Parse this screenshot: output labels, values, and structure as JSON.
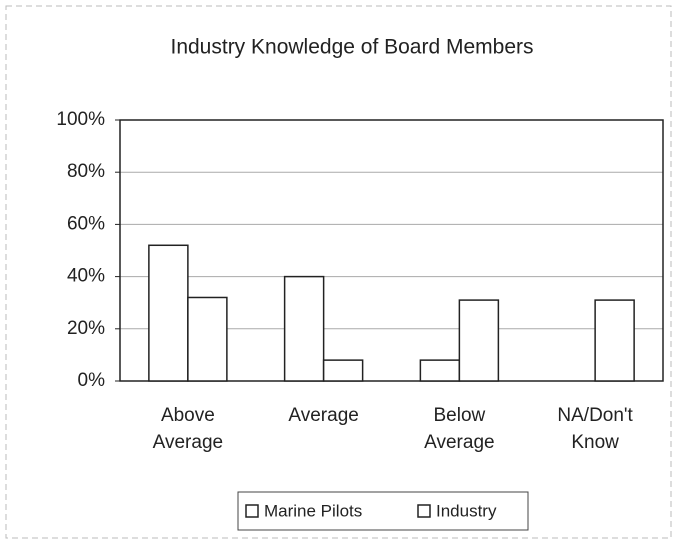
{
  "chart_data": {
    "type": "bar",
    "title": "Industry Knowledge of Board Members",
    "categories": [
      "Above Average",
      "Average",
      "Below Average",
      "NA/Don't Know"
    ],
    "series": [
      {
        "name": "Marine Pilots",
        "color": "#ffffff",
        "values": [
          52,
          40,
          8,
          0
        ]
      },
      {
        "name": "Industry",
        "color": "#ffffff",
        "values": [
          32,
          8,
          31,
          31
        ]
      }
    ],
    "ylim": [
      0,
      100
    ],
    "yticks": [
      {
        "value": 0,
        "label": "0%"
      },
      {
        "value": 20,
        "label": "20%"
      },
      {
        "value": 40,
        "label": "40%"
      },
      {
        "value": 60,
        "label": "60%"
      },
      {
        "value": 80,
        "label": "80%"
      },
      {
        "value": 100,
        "label": "100%"
      }
    ],
    "grid": true,
    "legend": "bottom"
  }
}
